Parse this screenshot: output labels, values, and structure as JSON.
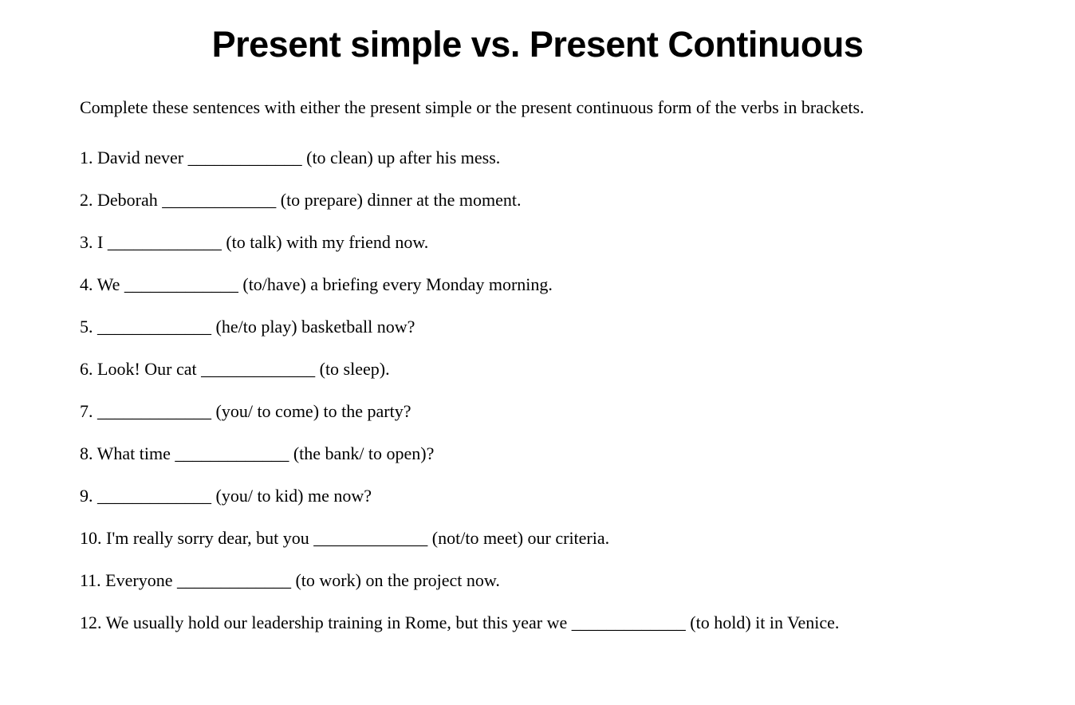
{
  "worksheet": {
    "title": "Present simple vs. Present Continuous",
    "instructions": "Complete these sentences with either the present simple or the present continuous form of the verbs in brackets.",
    "questions": [
      {
        "num": "1",
        "text": "1. David never _____________ (to clean) up after his mess."
      },
      {
        "num": "2",
        "text": "2. Deborah _____________ (to prepare) dinner at the moment."
      },
      {
        "num": "3",
        "text": "3. I _____________ (to talk) with my friend now."
      },
      {
        "num": "4",
        "text": "4. We _____________ (to/have) a briefing every Monday morning."
      },
      {
        "num": "5",
        "text": "5. _____________ (he/to play) basketball now?"
      },
      {
        "num": "6",
        "text": "6. Look! Our cat _____________ (to sleep)."
      },
      {
        "num": "7",
        "text": "7. _____________ (you/ to come) to the party?"
      },
      {
        "num": "8",
        "text": "8. What time _____________ (the bank/ to open)?"
      },
      {
        "num": "9",
        "text": "9. _____________ (you/ to kid) me now?"
      },
      {
        "num": "10",
        "text": "10. I'm really sorry dear, but you _____________ (not/to meet) our criteria."
      },
      {
        "num": "11",
        "text": "11. Everyone _____________ (to work) on the project now."
      },
      {
        "num": "12",
        "text": "12. We usually hold our leadership training in Rome, but this year we _____________ (to hold) it in Venice."
      }
    ]
  },
  "styles": {
    "background_color": "#ffffff",
    "text_color": "#000000",
    "title_font": "Arial, Helvetica, sans-serif",
    "title_fontsize": 45,
    "title_weight": "bold",
    "body_font": "Georgia, 'Times New Roman', serif",
    "body_fontsize": 22,
    "line_height": 1.5,
    "question_spacing": 20
  }
}
